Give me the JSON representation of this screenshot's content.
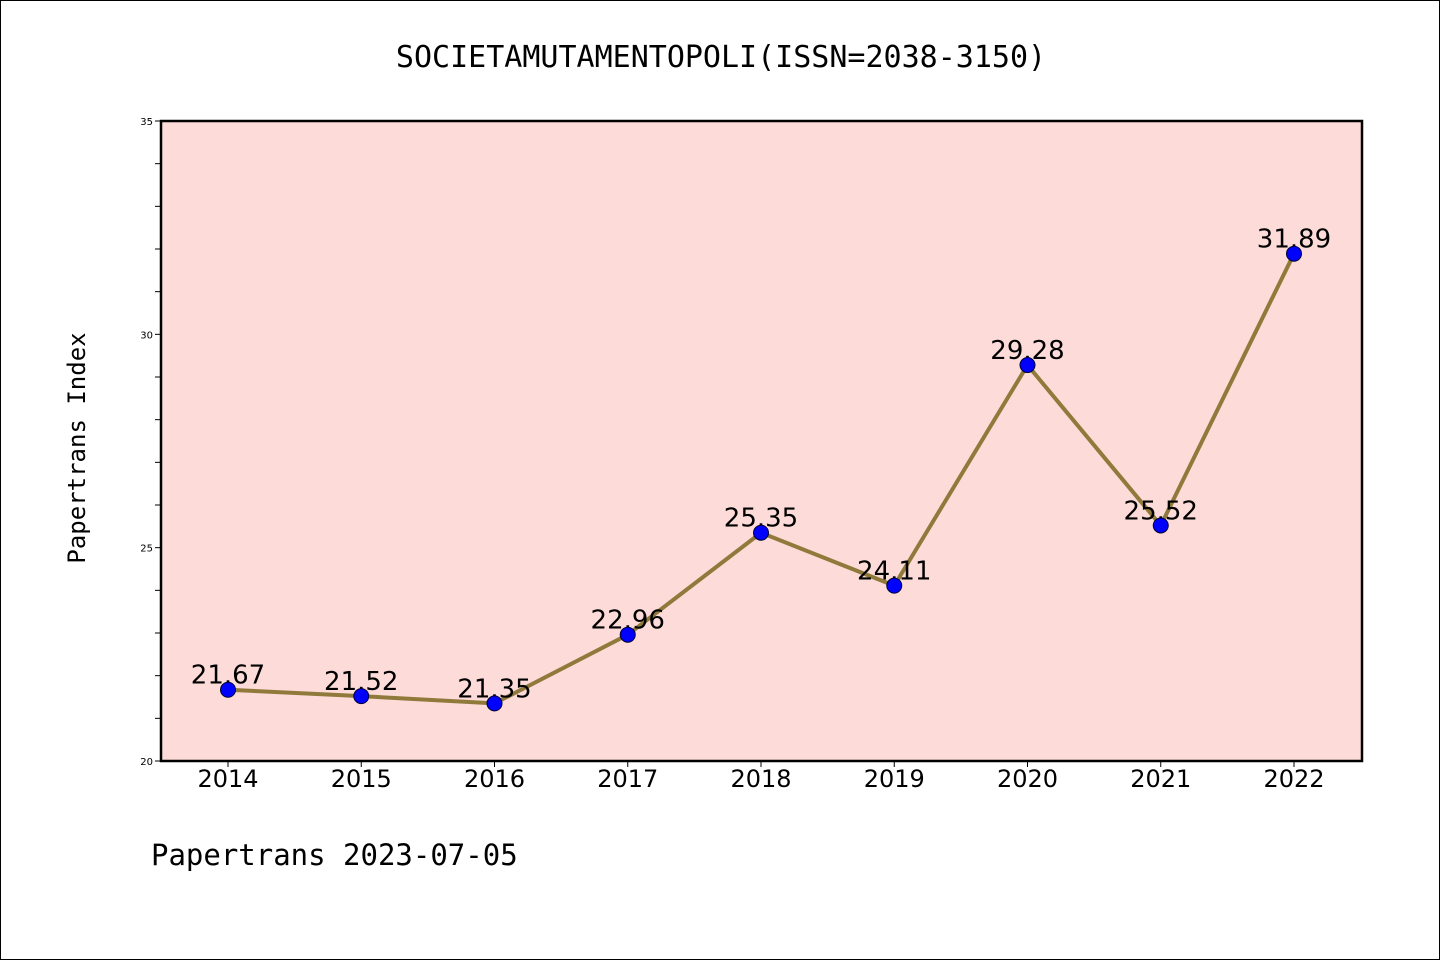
{
  "footer": "Papertrans 2023-07-05",
  "chart_data": {
    "type": "line",
    "title": "SOCIETAMUTAMENTOPOLI(ISSN=2038-3150)",
    "xlabel": "",
    "ylabel": "Papertrans Index",
    "categories": [
      "2014",
      "2015",
      "2016",
      "2017",
      "2018",
      "2019",
      "2020",
      "2021",
      "2022"
    ],
    "series": [
      {
        "values": [
          21.67,
          21.52,
          21.35,
          22.96,
          25.35,
          24.11,
          29.28,
          25.52,
          31.89
        ],
        "data_labels": [
          "21.67",
          "21.52",
          "21.35",
          "22.96",
          "25.35",
          "24.11",
          "29.28",
          "25.52",
          "31.89"
        ],
        "line_color": "#8f7a3b",
        "marker_color": "#0000ff"
      }
    ],
    "ylim": [
      20,
      35
    ],
    "yticks": [
      20,
      25,
      30,
      35
    ],
    "ytick_labels": [
      "20",
      "25",
      "30",
      "35"
    ],
    "grid": false,
    "legend": "none",
    "plot_background": "#fddbd8"
  }
}
